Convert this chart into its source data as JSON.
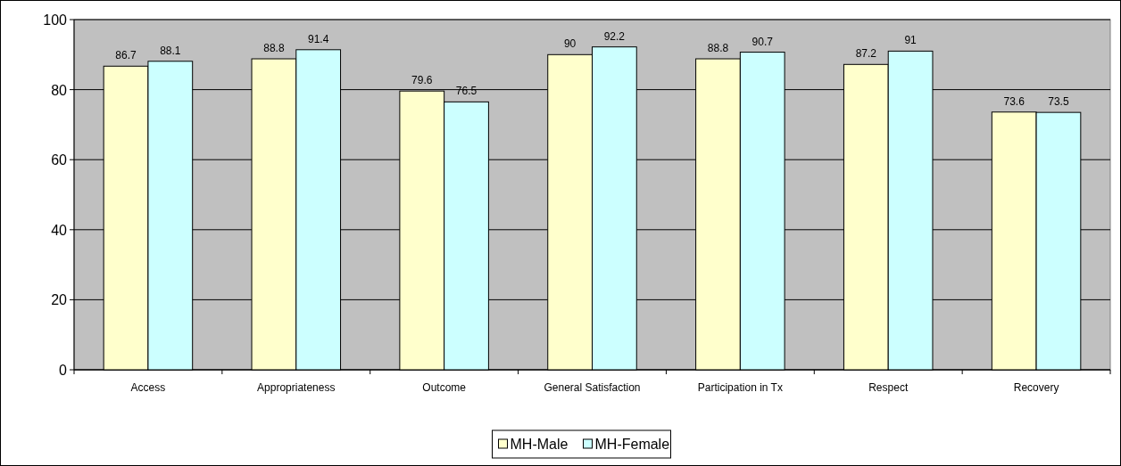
{
  "chart_data": {
    "type": "bar",
    "categories": [
      "Access",
      "Appropriateness",
      "Outcome",
      "General Satisfaction",
      "Participation in Tx",
      "Respect",
      "Recovery"
    ],
    "series": [
      {
        "name": "MH-Male",
        "color": "#ffffcc",
        "values": [
          86.7,
          88.8,
          79.6,
          90,
          88.8,
          87.2,
          73.6
        ]
      },
      {
        "name": "MH-Female",
        "color": "#ccffff",
        "values": [
          88.1,
          91.4,
          76.5,
          92.2,
          90.7,
          91,
          73.5
        ]
      }
    ],
    "ylim": [
      0,
      100
    ],
    "yticks": [
      0,
      20,
      40,
      60,
      80,
      100
    ],
    "grid": "y",
    "data_labels": true,
    "legend": "bottom"
  }
}
